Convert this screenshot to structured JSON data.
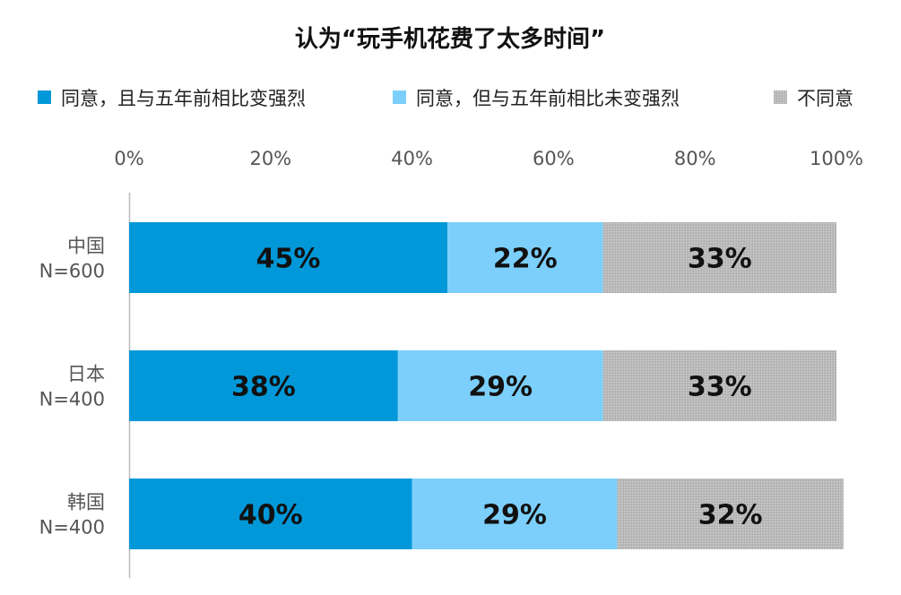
{
  "chart_data": {
    "type": "bar",
    "orientation": "horizontal",
    "stacked": true,
    "title": "认为“玩手机花费了太多时间”",
    "categories": [
      {
        "name": "中国",
        "n": "N=600"
      },
      {
        "name": "日本",
        "n": "N=400"
      },
      {
        "name": "韩国",
        "n": "N=400"
      }
    ],
    "series": [
      {
        "name": "同意，且与五年前相比变强烈",
        "color": "#0098D8",
        "values": [
          45,
          38,
          40
        ]
      },
      {
        "name": "同意，但与五年前相比未变强烈",
        "color": "#7CCFFB",
        "values": [
          22,
          29,
          29
        ]
      },
      {
        "name": "不同意",
        "color": "#C0C0C0",
        "pattern": "dotted",
        "values": [
          33,
          33,
          32
        ]
      }
    ],
    "xlim": [
      0,
      100
    ],
    "xticks": [
      "0%",
      "20%",
      "40%",
      "60%",
      "80%",
      "100%"
    ],
    "xlabel": "",
    "ylabel": "",
    "legend_position": "top",
    "axis_position": "top",
    "grid": false
  }
}
